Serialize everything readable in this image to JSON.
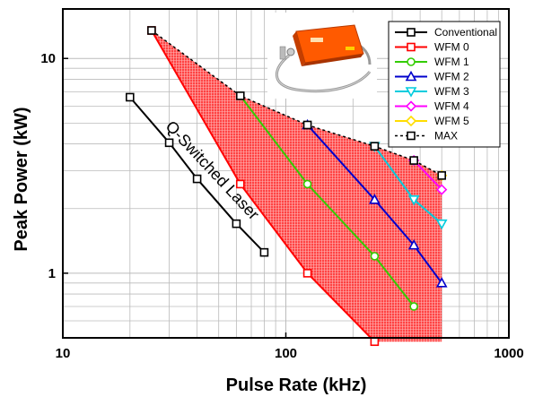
{
  "chart_data": {
    "type": "line",
    "xlabel": "Pulse Rate (kHz)",
    "ylabel": "Peak Power (kW)",
    "xscale": "log",
    "yscale": "log",
    "xlim": [
      10,
      1000
    ],
    "ylim": [
      0.5,
      17
    ],
    "xticks": [
      10,
      100,
      1000
    ],
    "xtick_labels": [
      "10",
      "100",
      "1000"
    ],
    "yticks": [
      1,
      10
    ],
    "ytick_labels": [
      "1",
      "10"
    ],
    "grid": true,
    "legend_position": "top-right",
    "series": [
      {
        "name": "Conventional",
        "color": "#000000",
        "marker": "square",
        "dash": "solid",
        "x": [
          20,
          30,
          40,
          60,
          80
        ],
        "y": [
          6.6,
          4.05,
          2.75,
          1.7,
          1.25
        ]
      },
      {
        "name": "WFM 0",
        "color": "#ff0000",
        "marker": "square",
        "dash": "solid",
        "x": [
          25,
          62.5,
          125,
          250
        ],
        "y": [
          13.5,
          2.6,
          1.0,
          0.48
        ]
      },
      {
        "name": "WFM 1",
        "color": "#33cc00",
        "marker": "circle",
        "dash": "solid",
        "x": [
          62.5,
          125,
          250,
          375
        ],
        "y": [
          6.7,
          2.6,
          1.2,
          0.7
        ]
      },
      {
        "name": "WFM 2",
        "color": "#0000cc",
        "marker": "triangle-up",
        "dash": "solid",
        "x": [
          125,
          250,
          375,
          500
        ],
        "y": [
          4.9,
          2.2,
          1.35,
          0.9
        ]
      },
      {
        "name": "WFM 3",
        "color": "#00ccdd",
        "marker": "triangle-down",
        "dash": "solid",
        "x": [
          250,
          375,
          500
        ],
        "y": [
          3.9,
          2.2,
          1.7
        ]
      },
      {
        "name": "WFM 4",
        "color": "#ff00ff",
        "marker": "diamond",
        "dash": "solid",
        "x": [
          375,
          500
        ],
        "y": [
          3.35,
          2.45
        ]
      },
      {
        "name": "WFM 5",
        "color": "#ffdd00",
        "marker": "diamond",
        "dash": "solid",
        "x": [
          500
        ],
        "y": [
          2.85
        ]
      },
      {
        "name": "MAX",
        "color": "#000000",
        "marker": "square",
        "dash": "dashed",
        "x": [
          25,
          62.5,
          125,
          250,
          375,
          500
        ],
        "y": [
          13.5,
          6.7,
          4.9,
          3.9,
          3.35,
          2.85
        ]
      }
    ],
    "shaded_region": {
      "fill": "#ff2222",
      "upper_x": [
        25,
        62.5,
        125,
        250,
        375,
        500
      ],
      "upper_y": [
        13.5,
        6.7,
        4.9,
        3.9,
        3.35,
        2.85
      ],
      "lower_x": [
        500,
        250,
        125,
        62.5,
        25
      ],
      "lower_y": [
        0.48,
        0.48,
        1.0,
        2.6,
        13.5
      ]
    },
    "annotations": [
      {
        "text": "Q-Switched Laser",
        "x": 45,
        "y": 2.9,
        "rotation_deg": 47
      }
    ],
    "inset_image": "device-photo"
  }
}
